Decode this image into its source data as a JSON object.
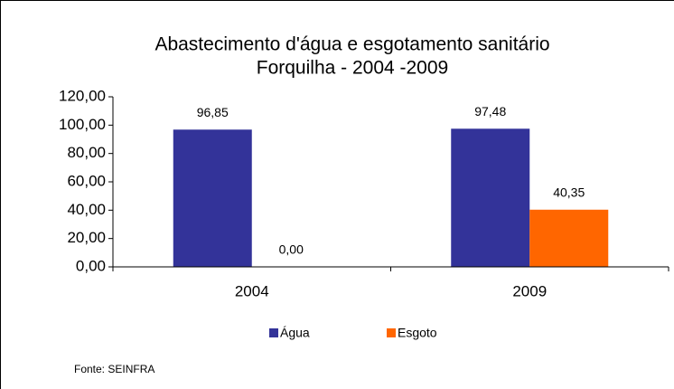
{
  "chart_data": {
    "type": "bar",
    "title": "Abastecimento d'água e esgotamento sanitário",
    "subtitle": "Forquilha  - 2004 -2009",
    "categories": [
      "2004",
      "2009"
    ],
    "series": [
      {
        "name": "Água",
        "color": "#333399",
        "values": [
          96.85,
          97.48
        ],
        "value_labels": [
          "96,85",
          "97,48"
        ]
      },
      {
        "name": "Esgoto",
        "color": "#ff6600",
        "values": [
          0,
          40.35
        ],
        "value_labels": [
          "0,00",
          "40,35"
        ]
      }
    ],
    "ylim": [
      0,
      120
    ],
    "yticks": [
      {
        "value": 0,
        "label": "0,00"
      },
      {
        "value": 20,
        "label": "20,00"
      },
      {
        "value": 40,
        "label": "40,00"
      },
      {
        "value": 60,
        "label": "60,00"
      },
      {
        "value": 80,
        "label": "80,00"
      },
      {
        "value": 100,
        "label": "100,00"
      },
      {
        "value": 120,
        "label": "120,00"
      }
    ],
    "grid": false,
    "legend": "bottom",
    "note": "Fonte: SEINFRA"
  }
}
